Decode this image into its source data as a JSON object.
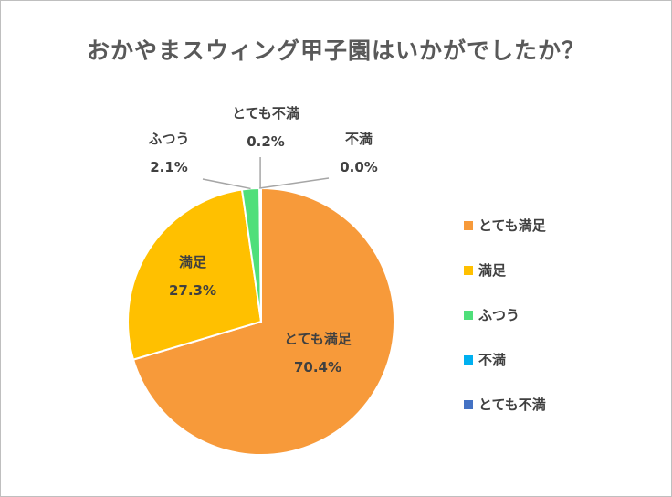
{
  "chart_data": {
    "type": "pie",
    "title": "おかやまスウィング甲子園はいかがでしたか？",
    "categories": [
      "とても満足",
      "満足",
      "ふつう",
      "不満",
      "とても不満"
    ],
    "values": [
      70.4,
      27.3,
      2.1,
      0.0,
      0.2
    ],
    "value_labels": [
      "70.4%",
      "27.3%",
      "2.1%",
      "0.0%",
      "0.2%"
    ],
    "colors": [
      "#f79a3a",
      "#ffc000",
      "#4fdf7a",
      "#00b0f0",
      "#4472c4"
    ],
    "legend_position": "right"
  }
}
